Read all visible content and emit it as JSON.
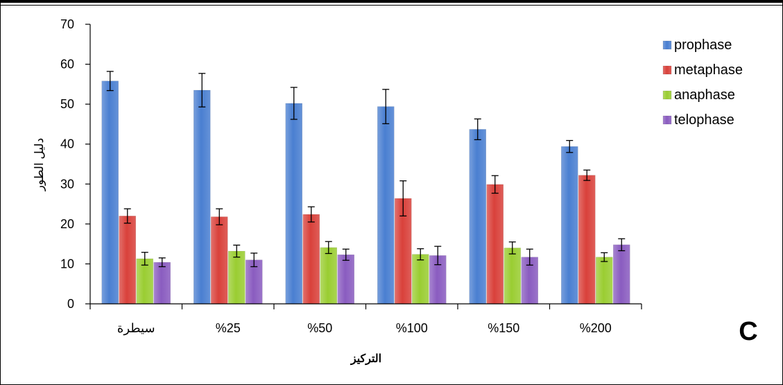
{
  "chart_data": {
    "type": "bar",
    "panel_label": "C",
    "xlabel": "التركيز",
    "ylabel": "دليل الطور",
    "ylim": [
      0,
      70
    ],
    "yticks": [
      0,
      10,
      20,
      30,
      40,
      50,
      60,
      70
    ],
    "grid": false,
    "legend_position": "right",
    "categories": [
      "سيطرة",
      "%25",
      "%50",
      "%100",
      "%150",
      "%200"
    ],
    "series": [
      {
        "name": "prophase",
        "color": "#4a7fd1",
        "values": [
          55.8,
          53.5,
          50.2,
          49.4,
          43.7,
          39.4
        ],
        "errors": [
          2.4,
          4.2,
          4.0,
          4.3,
          2.6,
          1.5
        ]
      },
      {
        "name": "metaphase",
        "color": "#d9413b",
        "values": [
          22.0,
          21.8,
          22.4,
          26.4,
          29.9,
          32.2
        ],
        "errors": [
          1.8,
          2.0,
          1.9,
          4.4,
          2.2,
          1.3
        ]
      },
      {
        "name": "anaphase",
        "color": "#9acd32",
        "values": [
          11.3,
          13.2,
          14.1,
          12.4,
          14.0,
          11.7
        ],
        "errors": [
          1.6,
          1.5,
          1.5,
          1.4,
          1.5,
          1.1
        ]
      },
      {
        "name": "telophase",
        "color": "#8a5cc0",
        "values": [
          10.4,
          11.0,
          12.3,
          12.1,
          11.7,
          14.8
        ],
        "errors": [
          1.1,
          1.7,
          1.4,
          2.3,
          2.0,
          1.5
        ]
      }
    ]
  }
}
